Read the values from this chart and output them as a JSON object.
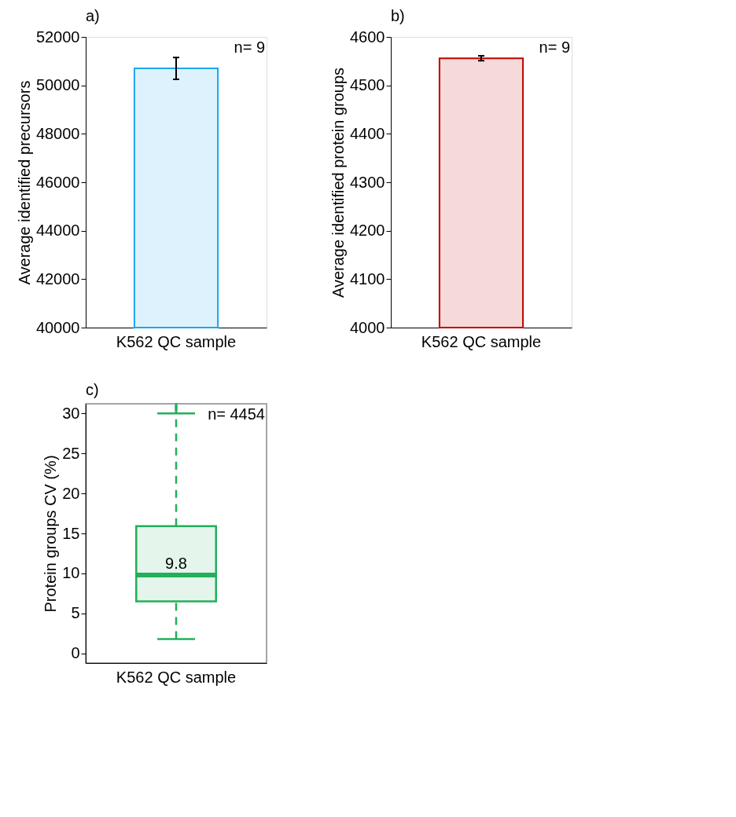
{
  "chart_data": [
    {
      "type": "bar",
      "title": "a)",
      "ylabel": "Average identified precursors",
      "categories": [
        "K562 QC sample"
      ],
      "series": [
        {
          "color": "#1aa7ec",
          "values": [
            50700
          ],
          "errors": [
            450
          ]
        }
      ],
      "ylim": [
        40000,
        52000
      ],
      "yticks": [
        40000,
        42000,
        44000,
        46000,
        48000,
        50000,
        52000
      ],
      "grid": false,
      "annotations": [
        "n= 9"
      ]
    },
    {
      "type": "bar",
      "title": "b)",
      "ylabel": "Average identified protein groups",
      "categories": [
        "K562 QC sample"
      ],
      "series": [
        {
          "color": "#c00000",
          "values": [
            4556
          ],
          "errors": [
            5
          ]
        }
      ],
      "ylim": [
        4000,
        4600
      ],
      "yticks": [
        4000,
        4100,
        4200,
        4300,
        4400,
        4500,
        4600
      ],
      "grid": false,
      "annotations": [
        "n= 9"
      ]
    },
    {
      "type": "box",
      "title": "c)",
      "ylabel": "Protein groups CV (%)",
      "categories": [
        "K562 QC sample"
      ],
      "series": [
        {
          "color": "#22b05a",
          "boxes": [
            {
              "low": 1.8,
              "q1": 6.5,
              "median": 9.8,
              "q3": 15.9,
              "high": 30,
              "outliers": [
                30.4,
                30.7,
                31.0
              ]
            }
          ]
        }
      ],
      "ylim": [
        -1.2,
        31.2
      ],
      "yticks": [
        0,
        5,
        10,
        15,
        20,
        25,
        30
      ],
      "grid": false,
      "annotations": [
        "n= 4454",
        {
          "text": "9.8",
          "x": "K562 QC sample",
          "y": 9.8
        }
      ]
    }
  ]
}
